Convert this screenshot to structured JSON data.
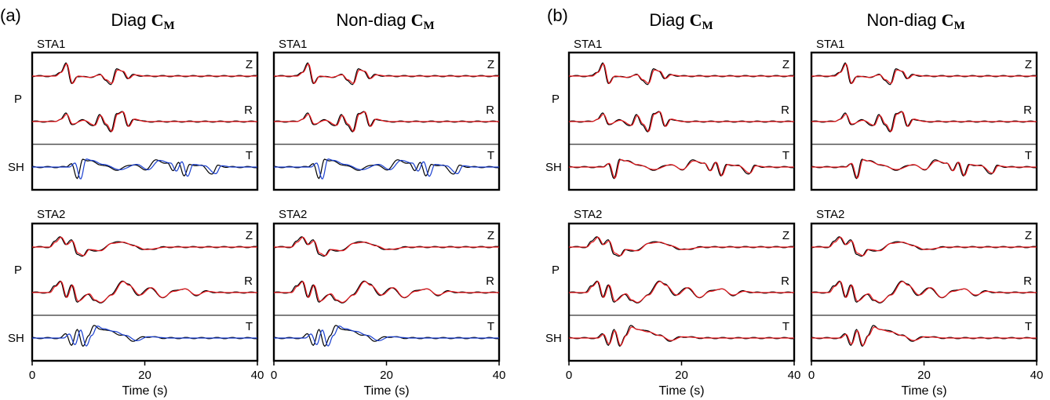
{
  "figure": {
    "panels": [
      {
        "label": "(a)",
        "titles": [
          "Diag",
          "Non-diag"
        ],
        "symbol": "C",
        "subscript": "M"
      },
      {
        "label": "(b)",
        "titles": [
          "Diag",
          "Non-diag"
        ],
        "symbol": "C",
        "subscript": "M"
      }
    ],
    "stations": [
      "STA1",
      "STA2"
    ],
    "components": [
      "Z",
      "R",
      "T"
    ],
    "phases": [
      "P",
      "SH"
    ],
    "xaxis": {
      "label": "Time (s)",
      "ticks": [
        "0",
        "20",
        "40"
      ],
      "range": [
        0,
        40
      ]
    },
    "colors": {
      "observed": "#000000",
      "synthetic_a_P": "#e8191e",
      "synthetic_a_SH": "#1a3fd0",
      "synthetic_b": "#e8191e"
    }
  },
  "chart_data": {
    "type": "line",
    "x_unit": "Time (s)",
    "xlim": [
      0,
      40
    ],
    "traces": {
      "STA1": {
        "Z": [
          [
            4,
            0
          ],
          [
            5,
            0.3
          ],
          [
            6,
            1.0
          ],
          [
            7,
            -0.6
          ],
          [
            8,
            0
          ],
          [
            10,
            -0.1
          ],
          [
            12,
            0.1
          ],
          [
            13,
            -0.3
          ],
          [
            14,
            -0.6
          ],
          [
            15,
            0.5
          ],
          [
            16,
            0.4
          ],
          [
            17,
            -0.2
          ],
          [
            18,
            0.1
          ],
          [
            20,
            0
          ],
          [
            40,
            0
          ]
        ],
        "R": [
          [
            4,
            0
          ],
          [
            5,
            0.2
          ],
          [
            6,
            0.6
          ],
          [
            7,
            -0.2
          ],
          [
            9,
            0.1
          ],
          [
            11,
            -0.3
          ],
          [
            12,
            0.5
          ],
          [
            13,
            -0.2
          ],
          [
            14,
            -0.8
          ],
          [
            15,
            0.6
          ],
          [
            16,
            0.8
          ],
          [
            17,
            -0.4
          ],
          [
            18,
            0.2
          ],
          [
            20,
            0
          ],
          [
            40,
            0
          ]
        ],
        "T": [
          [
            6,
            0
          ],
          [
            7,
            0.3
          ],
          [
            8,
            -0.9
          ],
          [
            9,
            0.6
          ],
          [
            10,
            0.5
          ],
          [
            12,
            0.2
          ],
          [
            15,
            -0.2
          ],
          [
            18,
            0.2
          ],
          [
            20,
            -0.2
          ],
          [
            22,
            0.5
          ],
          [
            24,
            0.3
          ],
          [
            25,
            -0.3
          ],
          [
            26,
            0.4
          ],
          [
            27,
            -0.7
          ],
          [
            28,
            0.2
          ],
          [
            30,
            0.1
          ],
          [
            32,
            -0.5
          ],
          [
            33,
            0.1
          ],
          [
            35,
            0
          ],
          [
            40,
            0
          ]
        ]
      },
      "STA2": {
        "Z": [
          [
            3,
            0
          ],
          [
            4,
            0.4
          ],
          [
            5,
            0.8
          ],
          [
            6,
            0.2
          ],
          [
            7,
            0.5
          ],
          [
            8,
            -0.5
          ],
          [
            9,
            -0.7
          ],
          [
            10,
            -0.2
          ],
          [
            12,
            -0.3
          ],
          [
            14,
            0.3
          ],
          [
            16,
            0.4
          ],
          [
            18,
            0.1
          ],
          [
            20,
            -0.2
          ],
          [
            24,
            0
          ],
          [
            40,
            0
          ]
        ],
        "R": [
          [
            3,
            0
          ],
          [
            4,
            0.5
          ],
          [
            5,
            0.9
          ],
          [
            6,
            -0.4
          ],
          [
            7,
            0.6
          ],
          [
            8,
            -0.7
          ],
          [
            10,
            -0.1
          ],
          [
            11,
            -0.6
          ],
          [
            12,
            -0.8
          ],
          [
            14,
            -0.2
          ],
          [
            16,
            0.9
          ],
          [
            17,
            0.6
          ],
          [
            19,
            -0.2
          ],
          [
            21,
            0.4
          ],
          [
            23,
            -0.4
          ],
          [
            25,
            0.1
          ],
          [
            27,
            0.3
          ],
          [
            29,
            -0.2
          ],
          [
            31,
            0.1
          ],
          [
            33,
            0
          ],
          [
            40,
            0
          ]
        ],
        "T": [
          [
            5,
            0
          ],
          [
            6,
            0.3
          ],
          [
            7,
            -0.5
          ],
          [
            8,
            0.6
          ],
          [
            9,
            -0.6
          ],
          [
            10,
            0.2
          ],
          [
            11,
            0.9
          ],
          [
            12,
            0.7
          ],
          [
            14,
            0.5
          ],
          [
            16,
            0.2
          ],
          [
            18,
            -0.2
          ],
          [
            20,
            0.1
          ],
          [
            24,
            0
          ],
          [
            40,
            0
          ]
        ]
      }
    }
  }
}
